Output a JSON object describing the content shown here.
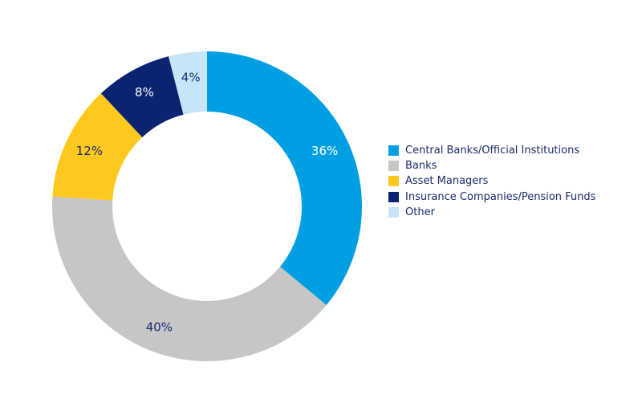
{
  "chart_data": {
    "type": "pie",
    "variant": "donut",
    "title": "",
    "categories": [
      "Central Banks/Official Institutions",
      "Banks",
      "Asset Managers",
      "Insurance Companies/Pension Funds",
      "Other"
    ],
    "values": [
      36,
      40,
      12,
      8,
      4
    ],
    "labels": [
      "36%",
      "40%",
      "12%",
      "8%",
      "4%"
    ],
    "colors": [
      "#009fe3",
      "#c6c6c6",
      "#ffc81e",
      "#0a2472",
      "#c7e5f8"
    ],
    "label_colors": [
      "#ffffff",
      "#1a2b6d",
      "#1a2b6d",
      "#ffffff",
      "#1a2b6d"
    ],
    "legend_placement": "right",
    "text_color": "#1a2b6d"
  }
}
